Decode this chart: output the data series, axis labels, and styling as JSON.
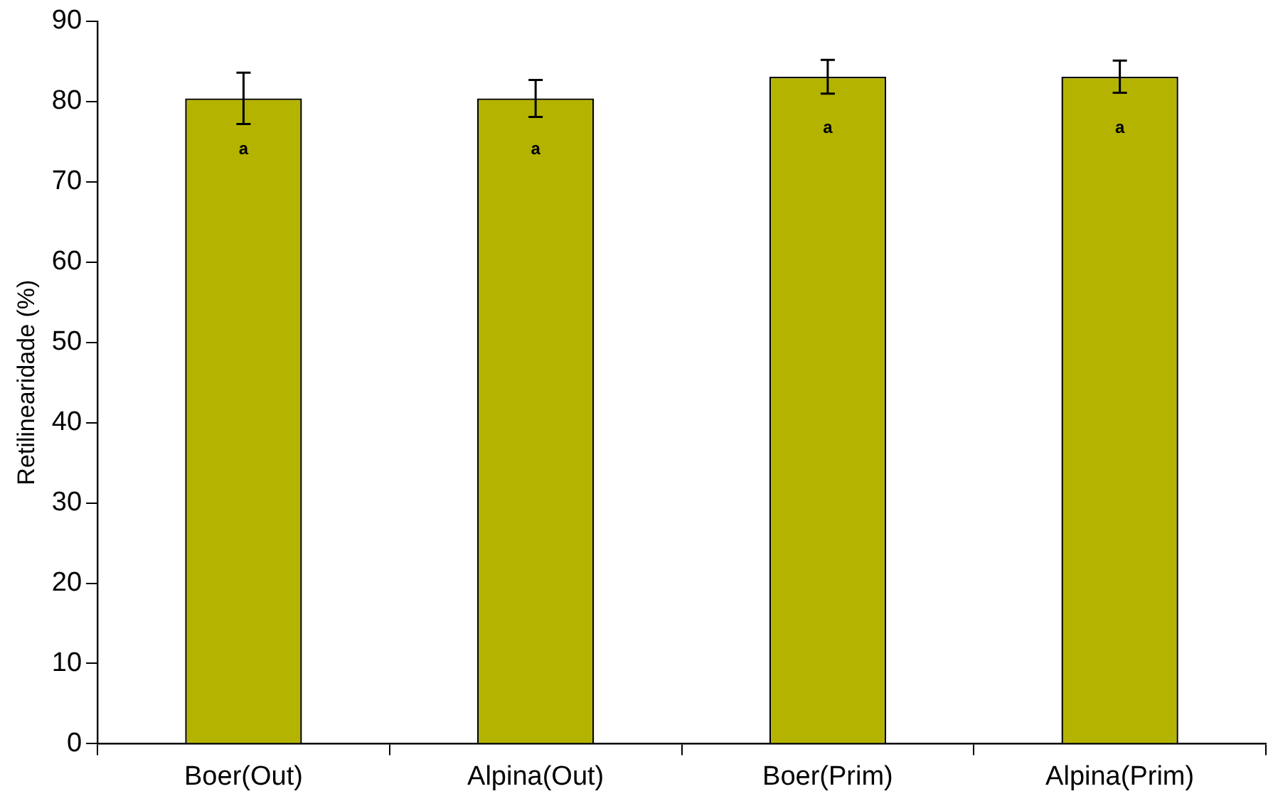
{
  "chart_data": {
    "type": "bar",
    "ylabel": "Retilinearidade (%)",
    "categories": [
      "Boer(Out)",
      "Alpina(Out)",
      "Boer(Prim)",
      "Alpina(Prim)"
    ],
    "values": [
      80.4,
      80.4,
      83.1,
      83.1
    ],
    "errors": [
      3.2,
      2.3,
      2.1,
      2.0
    ],
    "color": "#b4b400",
    "ylim": [
      0,
      90
    ],
    "yticks": [
      0,
      10,
      20,
      30,
      40,
      50,
      60,
      70,
      80,
      90
    ],
    "grid": false,
    "annotations": [
      "a",
      "a",
      "a",
      "a"
    ]
  }
}
